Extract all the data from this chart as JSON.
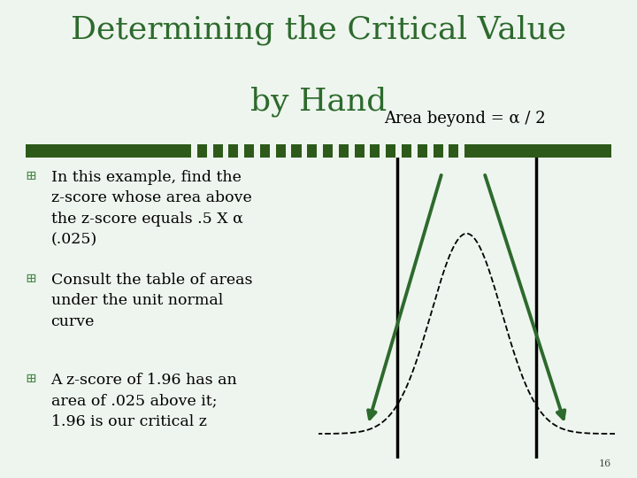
{
  "bg_color": "#eef5ee",
  "title_line1": "Determining the Critical Value",
  "title_line2": "by Hand",
  "title_color": "#2d6a2d",
  "title_fontsize": 26,
  "title_font": "serif",
  "divider_color": "#2d5a1a",
  "divider_dot_color": "#eef5ee",
  "bullet_color": "#4a8a4a",
  "bullet_symbol": "⊞",
  "bullet_points": [
    "In this example, find the\nz-score whose area above\nthe z-score equals .5 X α\n(.025)",
    "Consult the table of areas\nunder the unit normal\ncurve",
    "A z-score of 1.96 has an\narea of .025 above it;\n1.96 is our critical z"
  ],
  "text_color": "#000000",
  "text_fontsize": 12.5,
  "text_font": "serif",
  "annotation_text": "Area beyond = α / 2",
  "annotation_color": "#000000",
  "annotation_fontsize": 13,
  "curve_color": "#000000",
  "arrow_color": "#2d6a2d",
  "vline_color": "#000000",
  "vline_x1": -1.96,
  "vline_x2": 1.96,
  "slide_number": "16"
}
